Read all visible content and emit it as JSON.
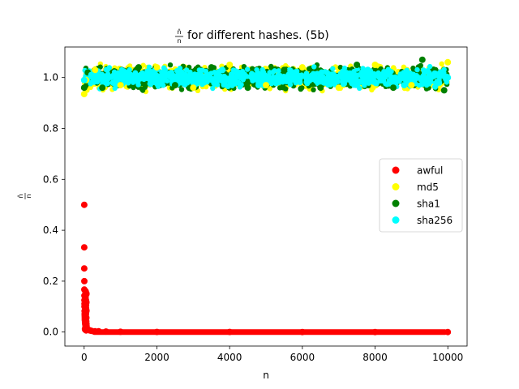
{
  "chart_data": {
    "type": "scatter",
    "title": {
      "fraction_num": "n̂",
      "fraction_den": "n",
      "text": "for different hashes. (5b)"
    },
    "xlabel": "n",
    "ylabel": {
      "fraction_num": "n̂",
      "fraction_den": "n"
    },
    "xlim": [
      -530,
      10530
    ],
    "ylim": [
      -0.055,
      1.12
    ],
    "x_ticks": [
      0,
      2000,
      4000,
      6000,
      8000,
      10000
    ],
    "x_tick_labels": [
      "0",
      "2000",
      "4000",
      "6000",
      "8000",
      "10000"
    ],
    "y_ticks": [
      0.0,
      0.2,
      0.4,
      0.6,
      0.8,
      1.0
    ],
    "y_tick_labels": [
      "0.0",
      "0.2",
      "0.4",
      "0.6",
      "0.8",
      "1.0"
    ],
    "grid": false,
    "legend_position": "center-right",
    "series": [
      {
        "name": "awful",
        "color": "#ff0000",
        "description_of_values": "y = 1/n",
        "x": [
          2,
          3,
          4,
          5,
          6,
          7,
          8,
          9,
          10,
          12,
          14,
          16,
          18,
          20,
          25,
          30,
          35,
          40,
          50,
          60,
          70,
          80,
          100,
          130,
          160,
          200,
          300,
          400,
          600,
          1000,
          2000,
          4000,
          6000,
          8000,
          10000
        ],
        "y": [
          0.5,
          0.333,
          0.25,
          0.2,
          0.167,
          0.143,
          0.125,
          0.111,
          0.1,
          0.083,
          0.071,
          0.063,
          0.056,
          0.05,
          0.04,
          0.033,
          0.029,
          0.025,
          0.02,
          0.017,
          0.014,
          0.013,
          0.01,
          0.008,
          0.006,
          0.005,
          0.003,
          0.003,
          0.002,
          0.001,
          0.0005,
          0.00025,
          0.00017,
          0.000125,
          0.0001
        ]
      },
      {
        "name": "md5",
        "color": "#ffff00",
        "x": [
          0,
          50,
          300,
          1000,
          2000,
          3000,
          4000,
          5000,
          6000,
          7000,
          8000,
          9000,
          10000
        ],
        "y": [
          0.935,
          0.99,
          1.03,
          0.97,
          1.04,
          0.96,
          1.05,
          0.97,
          1.04,
          0.96,
          1.05,
          0.97,
          1.06
        ]
      },
      {
        "name": "sha1",
        "color": "#008000",
        "x": [
          0,
          100,
          500,
          1500,
          2500,
          3500,
          4500,
          5500,
          6500,
          7500,
          8500,
          9300,
          9900
        ],
        "y": [
          0.96,
          1.02,
          0.96,
          1.04,
          0.97,
          1.04,
          0.96,
          1.03,
          0.96,
          1.05,
          0.96,
          1.07,
          0.95
        ]
      },
      {
        "name": "sha256",
        "color": "#00ffff",
        "x": [
          0,
          200,
          800,
          1800,
          2800,
          3800,
          4800,
          5800,
          6800,
          7800,
          8800,
          9800,
          10000
        ],
        "y": [
          0.99,
          1.01,
          0.98,
          1.02,
          0.98,
          1.03,
          0.97,
          1.02,
          0.98,
          1.03,
          0.97,
          1.02,
          1.0
        ]
      }
    ],
    "band_series": [
      {
        "name": "md5",
        "color": "#ffff00",
        "spread": 0.045
      },
      {
        "name": "sha1",
        "color": "#008000",
        "spread": 0.042
      },
      {
        "name": "sha256",
        "color": "#00ffff",
        "spread": 0.035
      }
    ],
    "awful_floor": {
      "color": "#ff0000",
      "x_from": 200,
      "x_to": 10000,
      "y": 0.0
    }
  }
}
